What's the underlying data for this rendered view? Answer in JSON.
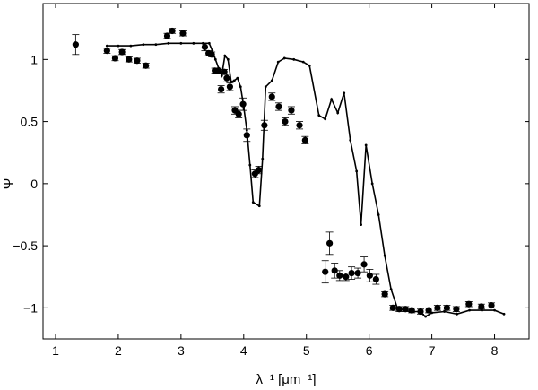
{
  "chart_data": {
    "type": "scatter",
    "title": "",
    "xlabel": "λ⁻¹  [μm⁻¹]",
    "ylabel": "Ψ",
    "xlim": [
      0.8,
      8.55
    ],
    "ylim": [
      -1.25,
      1.45
    ],
    "xticks": [
      1,
      2,
      3,
      4,
      5,
      6,
      7,
      8
    ],
    "yticks": [
      -1,
      -0.5,
      0,
      0.5,
      1
    ],
    "xtick_labels": [
      "1",
      "2",
      "3",
      "4",
      "5",
      "6",
      "7",
      "8"
    ],
    "ytick_labels": [
      "−1",
      "−0.5",
      "0",
      "0.5",
      "1"
    ],
    "grid": false,
    "legend": "none",
    "colors": {
      "points": "#000000",
      "line": "#000000",
      "axes": "#000000"
    },
    "series": [
      {
        "type": "scatter-errorbar",
        "points": [
          {
            "x": 1.32,
            "y": 1.12,
            "err": 0.08
          },
          {
            "x": 1.82,
            "y": 1.07,
            "err": 0.02
          },
          {
            "x": 1.95,
            "y": 1.01,
            "err": 0.02
          },
          {
            "x": 2.06,
            "y": 1.06,
            "err": 0.02
          },
          {
            "x": 2.17,
            "y": 1.0,
            "err": 0.02
          },
          {
            "x": 2.3,
            "y": 0.99,
            "err": 0.02
          },
          {
            "x": 2.44,
            "y": 0.95,
            "err": 0.02
          },
          {
            "x": 2.78,
            "y": 1.19,
            "err": 0.02
          },
          {
            "x": 2.86,
            "y": 1.23,
            "err": 0.02
          },
          {
            "x": 3.03,
            "y": 1.21,
            "err": 0.02
          },
          {
            "x": 3.38,
            "y": 1.1,
            "err": 0.03
          },
          {
            "x": 3.44,
            "y": 1.05,
            "err": 0.02
          },
          {
            "x": 3.49,
            "y": 1.04,
            "err": 0.02
          },
          {
            "x": 3.54,
            "y": 0.91,
            "err": 0.02
          },
          {
            "x": 3.59,
            "y": 0.91,
            "err": 0.02
          },
          {
            "x": 3.64,
            "y": 0.76,
            "err": 0.03
          },
          {
            "x": 3.69,
            "y": 0.9,
            "err": 0.02
          },
          {
            "x": 3.73,
            "y": 0.85,
            "err": 0.03
          },
          {
            "x": 3.78,
            "y": 0.78,
            "err": 0.03
          },
          {
            "x": 3.86,
            "y": 0.59,
            "err": 0.03
          },
          {
            "x": 3.92,
            "y": 0.56,
            "err": 0.03
          },
          {
            "x": 3.99,
            "y": 0.64,
            "err": 0.05
          },
          {
            "x": 4.05,
            "y": 0.39,
            "err": 0.05
          },
          {
            "x": 4.18,
            "y": 0.08,
            "err": 0.03
          },
          {
            "x": 4.24,
            "y": 0.11,
            "err": 0.03
          },
          {
            "x": 4.33,
            "y": 0.47,
            "err": 0.04
          },
          {
            "x": 4.45,
            "y": 0.7,
            "err": 0.03
          },
          {
            "x": 4.56,
            "y": 0.62,
            "err": 0.03
          },
          {
            "x": 4.66,
            "y": 0.5,
            "err": 0.03
          },
          {
            "x": 4.76,
            "y": 0.59,
            "err": 0.03
          },
          {
            "x": 4.89,
            "y": 0.47,
            "err": 0.03
          },
          {
            "x": 4.98,
            "y": 0.35,
            "err": 0.03
          },
          {
            "x": 5.3,
            "y": -0.71,
            "err": 0.09
          },
          {
            "x": 5.37,
            "y": -0.48,
            "err": 0.09
          },
          {
            "x": 5.45,
            "y": -0.7,
            "err": 0.06
          },
          {
            "x": 5.53,
            "y": -0.74,
            "err": 0.04
          },
          {
            "x": 5.63,
            "y": -0.75,
            "err": 0.03
          },
          {
            "x": 5.72,
            "y": -0.72,
            "err": 0.05
          },
          {
            "x": 5.82,
            "y": -0.72,
            "err": 0.04
          },
          {
            "x": 5.92,
            "y": -0.65,
            "err": 0.06
          },
          {
            "x": 6.01,
            "y": -0.74,
            "err": 0.05
          },
          {
            "x": 6.11,
            "y": -0.77,
            "err": 0.04
          },
          {
            "x": 6.25,
            "y": -0.89,
            "err": 0.02
          },
          {
            "x": 6.38,
            "y": -1.0,
            "err": 0.02
          },
          {
            "x": 6.48,
            "y": -1.01,
            "err": 0.02
          },
          {
            "x": 6.58,
            "y": -1.01,
            "err": 0.02
          },
          {
            "x": 6.68,
            "y": -1.02,
            "err": 0.02
          },
          {
            "x": 6.82,
            "y": -1.03,
            "err": 0.02
          },
          {
            "x": 6.95,
            "y": -1.02,
            "err": 0.02
          },
          {
            "x": 7.09,
            "y": -1.0,
            "err": 0.02
          },
          {
            "x": 7.24,
            "y": -1.0,
            "err": 0.02
          },
          {
            "x": 7.39,
            "y": -1.01,
            "err": 0.02
          },
          {
            "x": 7.59,
            "y": -0.97,
            "err": 0.02
          },
          {
            "x": 7.79,
            "y": -0.99,
            "err": 0.02
          },
          {
            "x": 7.95,
            "y": -0.98,
            "err": 0.02
          }
        ]
      },
      {
        "type": "line",
        "points": [
          {
            "x": 1.82,
            "y": 1.11
          },
          {
            "x": 2.0,
            "y": 1.11
          },
          {
            "x": 2.2,
            "y": 1.11
          },
          {
            "x": 2.4,
            "y": 1.12
          },
          {
            "x": 2.6,
            "y": 1.12
          },
          {
            "x": 2.8,
            "y": 1.13
          },
          {
            "x": 3.0,
            "y": 1.13
          },
          {
            "x": 3.2,
            "y": 1.13
          },
          {
            "x": 3.35,
            "y": 1.13
          },
          {
            "x": 3.45,
            "y": 1.13
          },
          {
            "x": 3.5,
            "y": 1.07
          },
          {
            "x": 3.55,
            "y": 1.0
          },
          {
            "x": 3.6,
            "y": 0.93
          },
          {
            "x": 3.65,
            "y": 0.87
          },
          {
            "x": 3.7,
            "y": 1.03
          },
          {
            "x": 3.75,
            "y": 1.0
          },
          {
            "x": 3.8,
            "y": 0.82
          },
          {
            "x": 3.85,
            "y": 0.83
          },
          {
            "x": 3.9,
            "y": 0.85
          },
          {
            "x": 3.95,
            "y": 0.78
          },
          {
            "x": 4.0,
            "y": 0.62
          },
          {
            "x": 4.05,
            "y": 0.43
          },
          {
            "x": 4.1,
            "y": 0.15
          },
          {
            "x": 4.15,
            "y": -0.15
          },
          {
            "x": 4.25,
            "y": -0.18
          },
          {
            "x": 4.3,
            "y": 0.2
          },
          {
            "x": 4.35,
            "y": 0.78
          },
          {
            "x": 4.45,
            "y": 0.83
          },
          {
            "x": 4.55,
            "y": 0.98
          },
          {
            "x": 4.65,
            "y": 1.01
          },
          {
            "x": 4.8,
            "y": 1.0
          },
          {
            "x": 4.95,
            "y": 0.98
          },
          {
            "x": 5.05,
            "y": 0.95
          },
          {
            "x": 5.2,
            "y": 0.55
          },
          {
            "x": 5.3,
            "y": 0.52
          },
          {
            "x": 5.4,
            "y": 0.68
          },
          {
            "x": 5.5,
            "y": 0.57
          },
          {
            "x": 5.6,
            "y": 0.73
          },
          {
            "x": 5.7,
            "y": 0.35
          },
          {
            "x": 5.8,
            "y": 0.1
          },
          {
            "x": 5.87,
            "y": -0.33
          },
          {
            "x": 5.95,
            "y": 0.31
          },
          {
            "x": 6.05,
            "y": 0.0
          },
          {
            "x": 6.15,
            "y": -0.25
          },
          {
            "x": 6.25,
            "y": -0.58
          },
          {
            "x": 6.35,
            "y": -0.85
          },
          {
            "x": 6.45,
            "y": -1.0
          },
          {
            "x": 6.55,
            "y": -1.02
          },
          {
            "x": 6.65,
            "y": -1.03
          },
          {
            "x": 6.8,
            "y": -1.03
          },
          {
            "x": 6.9,
            "y": -1.07
          },
          {
            "x": 7.0,
            "y": -1.04
          },
          {
            "x": 7.2,
            "y": -1.03
          },
          {
            "x": 7.4,
            "y": -1.05
          },
          {
            "x": 7.6,
            "y": -1.02
          },
          {
            "x": 7.8,
            "y": -1.02
          },
          {
            "x": 8.0,
            "y": -1.02
          },
          {
            "x": 8.15,
            "y": -1.05
          }
        ]
      }
    ]
  }
}
